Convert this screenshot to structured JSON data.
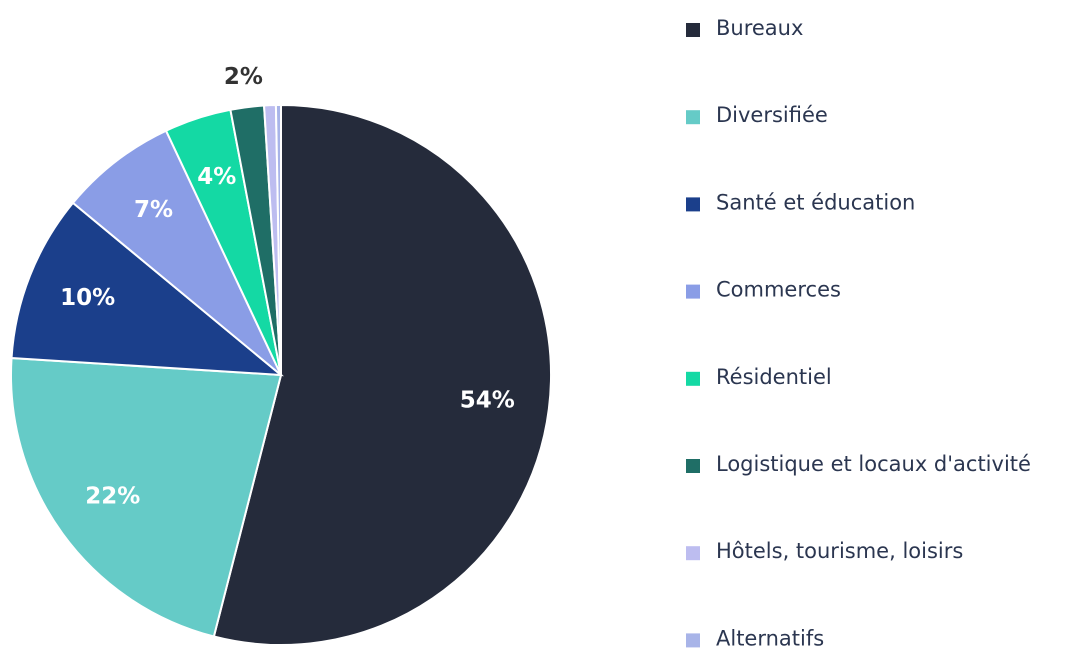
{
  "chart_data": {
    "type": "pie",
    "categories": [
      "Bureaux",
      "Diversifiée",
      "Santé et éducation",
      "Commerces",
      "Résidentiel",
      "Logistique et locaux d'activité",
      "Hôtels, tourisme, loisirs",
      "Alternatifs"
    ],
    "values": [
      54,
      22,
      10,
      7,
      4,
      2,
      0.7,
      0.3
    ],
    "value_labels": [
      "54%",
      "22%",
      "10%",
      "7%",
      "4%",
      "2%",
      null,
      null
    ],
    "colors": [
      "#252b3b",
      "#65cbc7",
      "#1b3f8b",
      "#8a9de6",
      "#14d9a4",
      "#1f6e66",
      "#bdbdf0",
      "#a8b4e8"
    ],
    "legend": "right"
  }
}
